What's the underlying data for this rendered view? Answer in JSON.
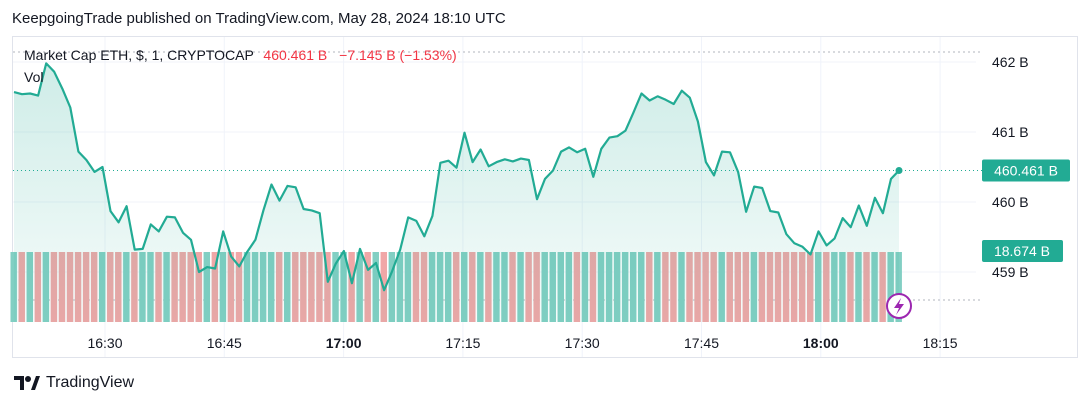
{
  "publish_line": "KeepgoingTrade published on TradingView.com, May 28, 2024 18:10 UTC",
  "legend": {
    "symbol": "Market Cap ETH, $, 1, CRYPTOCAP",
    "value": "460.461 B",
    "change": "−7.145 B (−1.53%)",
    "volume_label": "Vol"
  },
  "brand": "TradingView",
  "colors": {
    "line": "#22ab94",
    "area": "#22ab94",
    "down": "#f23645",
    "vol_up": "#82cfc3",
    "vol_down": "#f0a7a7"
  },
  "chart_data": {
    "type": "line",
    "x_ticks": [
      "16:30",
      "16:45",
      "17:00",
      "17:15",
      "17:30",
      "17:45",
      "18:00",
      "18:15"
    ],
    "x_ticks_bold": [
      "17:00",
      "18:00"
    ],
    "y_ticks": [
      "462 B",
      "461 B",
      "460 B",
      "459 B"
    ],
    "ylim": [
      458.6,
      462.3
    ],
    "last_price_label": "460.461 B",
    "volume_label": "18.674 B",
    "series": [
      {
        "values": [
          461.57,
          461.54,
          461.55,
          461.52,
          461.98,
          461.86,
          461.62,
          461.35,
          460.72,
          460.6,
          460.43,
          460.5,
          459.87,
          459.71,
          459.94,
          459.32,
          459.33,
          459.68,
          459.58,
          459.79,
          459.78,
          459.56,
          459.46,
          459.0,
          459.07,
          459.05,
          459.58,
          459.22,
          459.08,
          459.29,
          459.46,
          459.88,
          460.25,
          460.02,
          460.23,
          460.21,
          459.9,
          459.88,
          459.84,
          458.86,
          459.12,
          459.3,
          458.84,
          459.33,
          459.03,
          459.13,
          458.74,
          459.01,
          459.32,
          459.78,
          459.73,
          459.51,
          459.8,
          460.56,
          460.59,
          460.49,
          460.99,
          460.57,
          460.75,
          460.51,
          460.57,
          460.61,
          460.58,
          460.62,
          460.6,
          460.04,
          460.33,
          460.45,
          460.72,
          460.78,
          460.71,
          460.76,
          460.36,
          460.76,
          460.92,
          460.94,
          461.02,
          461.28,
          461.55,
          461.45,
          461.51,
          461.46,
          461.4,
          461.59,
          461.49,
          461.15,
          460.57,
          460.38,
          460.72,
          460.71,
          460.43,
          459.86,
          460.22,
          460.2,
          459.87,
          459.85,
          459.54,
          459.41,
          459.36,
          459.25,
          459.58,
          459.38,
          459.48,
          459.77,
          459.64,
          459.95,
          459.66,
          460.06,
          459.84,
          460.33,
          460.45
        ]
      }
    ]
  }
}
